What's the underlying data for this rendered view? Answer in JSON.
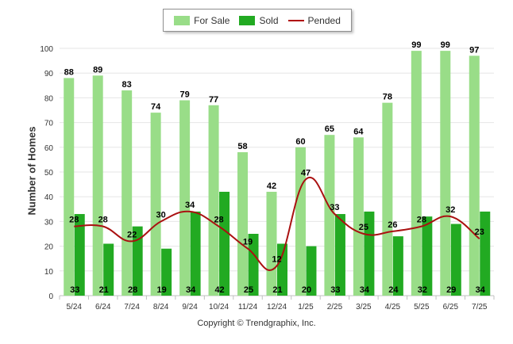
{
  "chart_data": {
    "type": "bar",
    "categories": [
      "5/24",
      "6/24",
      "7/24",
      "8/24",
      "9/24",
      "10/24",
      "11/24",
      "12/24",
      "1/25",
      "2/25",
      "3/25",
      "4/25",
      "5/25",
      "6/25",
      "7/25"
    ],
    "series": [
      {
        "name": "For Sale",
        "type": "bar",
        "color": "#99dd88",
        "values": [
          88,
          89,
          83,
          74,
          79,
          77,
          58,
          42,
          60,
          65,
          64,
          78,
          99,
          99,
          97
        ]
      },
      {
        "name": "Sold",
        "type": "bar",
        "color": "#22aa22",
        "values": [
          33,
          21,
          28,
          19,
          34,
          42,
          25,
          21,
          20,
          33,
          34,
          24,
          32,
          29,
          34
        ]
      },
      {
        "name": "Pended",
        "type": "line",
        "color": "#aa1111",
        "values": [
          28,
          28,
          22,
          30,
          34,
          28,
          19,
          12,
          47,
          33,
          25,
          26,
          28,
          32,
          23
        ]
      }
    ],
    "ylabel": "Number of Homes",
    "ylim": [
      0,
      100
    ],
    "yticks": [
      0,
      10,
      20,
      30,
      40,
      50,
      60,
      70,
      80,
      90,
      100
    ],
    "grid": true,
    "legend_position": "top-center"
  },
  "legend": {
    "for_sale": "For Sale",
    "sold": "Sold",
    "pended": "Pended"
  },
  "footer": {
    "copyright": "Copyright © Trendgraphix, Inc."
  }
}
